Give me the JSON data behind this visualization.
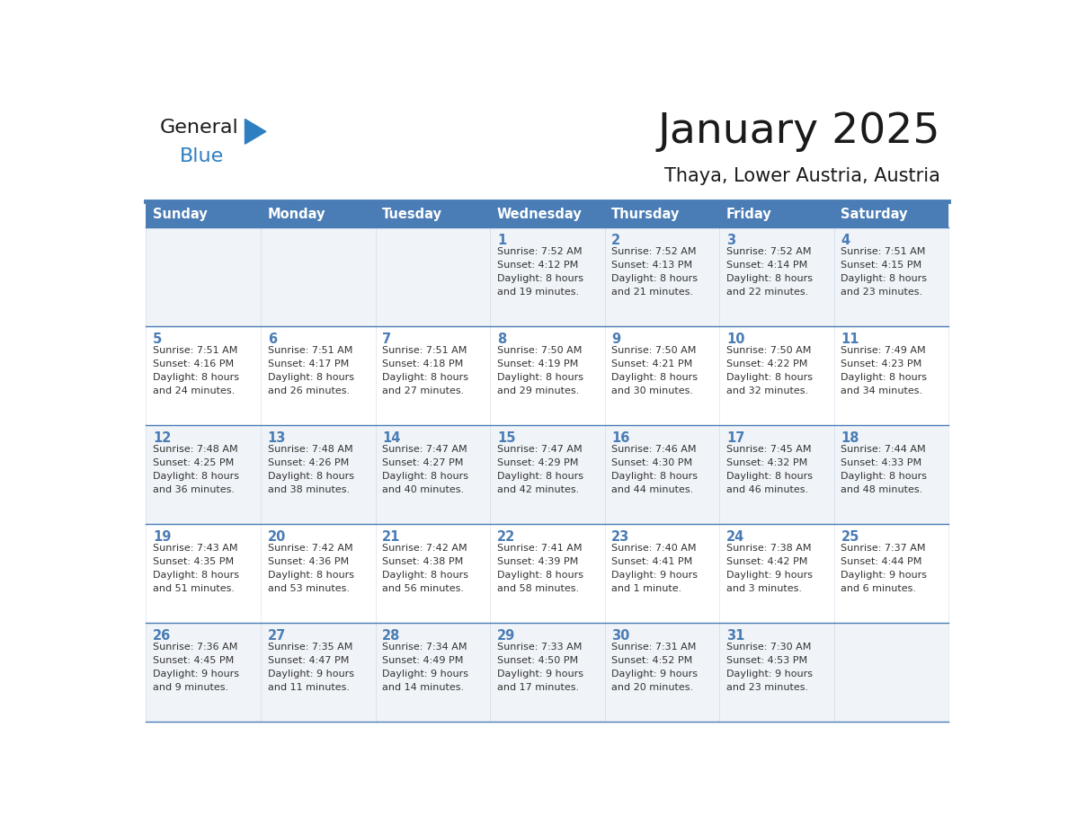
{
  "title": "January 2025",
  "subtitle": "Thaya, Lower Austria, Austria",
  "header_bg_color": "#4a7cb5",
  "header_text_color": "#ffffff",
  "header_days": [
    "Sunday",
    "Monday",
    "Tuesday",
    "Wednesday",
    "Thursday",
    "Friday",
    "Saturday"
  ],
  "row_bg_even": "#f0f4f8",
  "row_bg_odd": "#ffffff",
  "cell_border_color": "#4a7cb5",
  "cell_text_color": "#333333",
  "logo_general_color": "#1a1a1a",
  "logo_blue_color": "#2e7fc1",
  "logo_triangle_color": "#2e7fc1",
  "title_color": "#1a1a1a",
  "calendar_data": [
    [
      {
        "day": null,
        "sunrise": null,
        "sunset": null,
        "daylight": null
      },
      {
        "day": null,
        "sunrise": null,
        "sunset": null,
        "daylight": null
      },
      {
        "day": null,
        "sunrise": null,
        "sunset": null,
        "daylight": null
      },
      {
        "day": 1,
        "sunrise": "7:52 AM",
        "sunset": "4:12 PM",
        "daylight": "8 hours\nand 19 minutes."
      },
      {
        "day": 2,
        "sunrise": "7:52 AM",
        "sunset": "4:13 PM",
        "daylight": "8 hours\nand 21 minutes."
      },
      {
        "day": 3,
        "sunrise": "7:52 AM",
        "sunset": "4:14 PM",
        "daylight": "8 hours\nand 22 minutes."
      },
      {
        "day": 4,
        "sunrise": "7:51 AM",
        "sunset": "4:15 PM",
        "daylight": "8 hours\nand 23 minutes."
      }
    ],
    [
      {
        "day": 5,
        "sunrise": "7:51 AM",
        "sunset": "4:16 PM",
        "daylight": "8 hours\nand 24 minutes."
      },
      {
        "day": 6,
        "sunrise": "7:51 AM",
        "sunset": "4:17 PM",
        "daylight": "8 hours\nand 26 minutes."
      },
      {
        "day": 7,
        "sunrise": "7:51 AM",
        "sunset": "4:18 PM",
        "daylight": "8 hours\nand 27 minutes."
      },
      {
        "day": 8,
        "sunrise": "7:50 AM",
        "sunset": "4:19 PM",
        "daylight": "8 hours\nand 29 minutes."
      },
      {
        "day": 9,
        "sunrise": "7:50 AM",
        "sunset": "4:21 PM",
        "daylight": "8 hours\nand 30 minutes."
      },
      {
        "day": 10,
        "sunrise": "7:50 AM",
        "sunset": "4:22 PM",
        "daylight": "8 hours\nand 32 minutes."
      },
      {
        "day": 11,
        "sunrise": "7:49 AM",
        "sunset": "4:23 PM",
        "daylight": "8 hours\nand 34 minutes."
      }
    ],
    [
      {
        "day": 12,
        "sunrise": "7:48 AM",
        "sunset": "4:25 PM",
        "daylight": "8 hours\nand 36 minutes."
      },
      {
        "day": 13,
        "sunrise": "7:48 AM",
        "sunset": "4:26 PM",
        "daylight": "8 hours\nand 38 minutes."
      },
      {
        "day": 14,
        "sunrise": "7:47 AM",
        "sunset": "4:27 PM",
        "daylight": "8 hours\nand 40 minutes."
      },
      {
        "day": 15,
        "sunrise": "7:47 AM",
        "sunset": "4:29 PM",
        "daylight": "8 hours\nand 42 minutes."
      },
      {
        "day": 16,
        "sunrise": "7:46 AM",
        "sunset": "4:30 PM",
        "daylight": "8 hours\nand 44 minutes."
      },
      {
        "day": 17,
        "sunrise": "7:45 AM",
        "sunset": "4:32 PM",
        "daylight": "8 hours\nand 46 minutes."
      },
      {
        "day": 18,
        "sunrise": "7:44 AM",
        "sunset": "4:33 PM",
        "daylight": "8 hours\nand 48 minutes."
      }
    ],
    [
      {
        "day": 19,
        "sunrise": "7:43 AM",
        "sunset": "4:35 PM",
        "daylight": "8 hours\nand 51 minutes."
      },
      {
        "day": 20,
        "sunrise": "7:42 AM",
        "sunset": "4:36 PM",
        "daylight": "8 hours\nand 53 minutes."
      },
      {
        "day": 21,
        "sunrise": "7:42 AM",
        "sunset": "4:38 PM",
        "daylight": "8 hours\nand 56 minutes."
      },
      {
        "day": 22,
        "sunrise": "7:41 AM",
        "sunset": "4:39 PM",
        "daylight": "8 hours\nand 58 minutes."
      },
      {
        "day": 23,
        "sunrise": "7:40 AM",
        "sunset": "4:41 PM",
        "daylight": "9 hours\nand 1 minute."
      },
      {
        "day": 24,
        "sunrise": "7:38 AM",
        "sunset": "4:42 PM",
        "daylight": "9 hours\nand 3 minutes."
      },
      {
        "day": 25,
        "sunrise": "7:37 AM",
        "sunset": "4:44 PM",
        "daylight": "9 hours\nand 6 minutes."
      }
    ],
    [
      {
        "day": 26,
        "sunrise": "7:36 AM",
        "sunset": "4:45 PM",
        "daylight": "9 hours\nand 9 minutes."
      },
      {
        "day": 27,
        "sunrise": "7:35 AM",
        "sunset": "4:47 PM",
        "daylight": "9 hours\nand 11 minutes."
      },
      {
        "day": 28,
        "sunrise": "7:34 AM",
        "sunset": "4:49 PM",
        "daylight": "9 hours\nand 14 minutes."
      },
      {
        "day": 29,
        "sunrise": "7:33 AM",
        "sunset": "4:50 PM",
        "daylight": "9 hours\nand 17 minutes."
      },
      {
        "day": 30,
        "sunrise": "7:31 AM",
        "sunset": "4:52 PM",
        "daylight": "9 hours\nand 20 minutes."
      },
      {
        "day": 31,
        "sunrise": "7:30 AM",
        "sunset": "4:53 PM",
        "daylight": "9 hours\nand 23 minutes."
      },
      {
        "day": null,
        "sunrise": null,
        "sunset": null,
        "daylight": null
      }
    ]
  ]
}
